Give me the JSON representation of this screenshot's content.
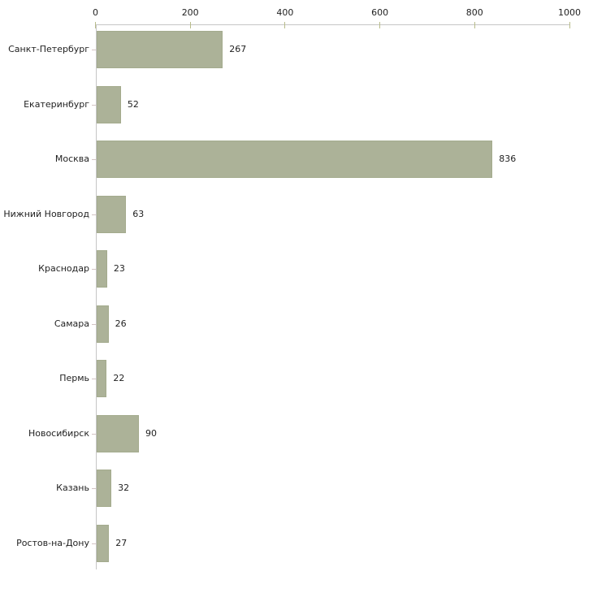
{
  "chart_data": {
    "type": "bar",
    "orientation": "horizontal",
    "title": "",
    "xlabel": "",
    "ylabel": "",
    "categories": [
      "Санкт-Петербург",
      "Екатеринбург",
      "Москва",
      "Нижний Новгород",
      "Краснодар",
      "Самара",
      "Пермь",
      "Новосибирск",
      "Казань",
      "Ростов-на-Дону"
    ],
    "values": [
      267,
      52,
      836,
      63,
      23,
      26,
      22,
      90,
      32,
      27
    ],
    "value_labels": [
      "267",
      "52",
      "836",
      "63",
      "23",
      "26",
      "22",
      "90",
      "32",
      "27"
    ],
    "xlim": [
      0,
      1000
    ],
    "xticks": [
      0,
      200,
      400,
      600,
      800,
      1000
    ],
    "xtick_labels": [
      "0",
      "200",
      "400",
      "600",
      "800",
      "1000"
    ],
    "axis_position": "top",
    "grid": false,
    "legend": false,
    "colors": {
      "bar_fill": "#acb298",
      "bar_border": "#a4ab8d",
      "axis_line": "#c6c6c6",
      "x_tick": "#b8bc8a",
      "y_tick": "#d2c3c3",
      "text": "#1f1f1f",
      "background": "#ffffff"
    }
  }
}
